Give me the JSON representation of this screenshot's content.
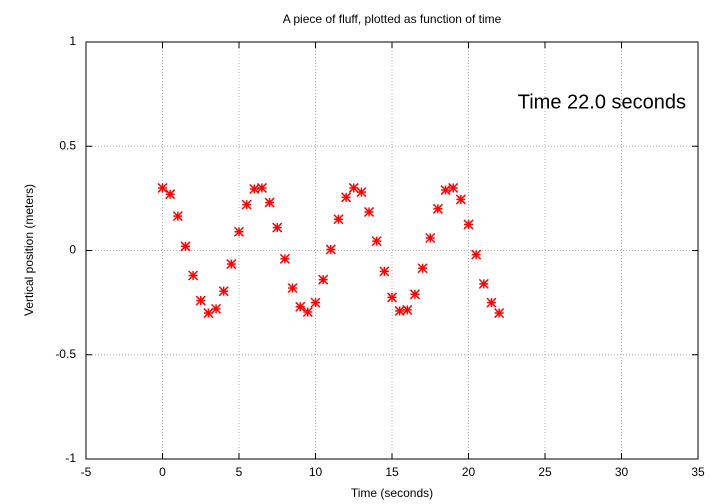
{
  "chart_data": {
    "type": "scatter",
    "title": "A piece of fluff, plotted as function of time",
    "x_label": "Time (seconds)",
    "y_label": "Vertical position (meters)",
    "annotation": "Time 22.0 seconds",
    "x": [
      0,
      0.5,
      1,
      1.5,
      2,
      2.5,
      3,
      3.5,
      4,
      4.5,
      5,
      5.5,
      6,
      6.5,
      7,
      7.5,
      8,
      8.5,
      9,
      9.5,
      10,
      10.5,
      11,
      11.5,
      12,
      12.5,
      13,
      13.5,
      14,
      14.5,
      15,
      15.5,
      16,
      16.5,
      17,
      17.5,
      18,
      18.5,
      19,
      19.5,
      20,
      20.5,
      21,
      21.5,
      22
    ],
    "values": [
      0.3,
      0.27,
      0.165,
      0.02,
      -0.12,
      -0.24,
      -0.3,
      -0.28,
      -0.195,
      -0.065,
      0.09,
      0.22,
      0.295,
      0.3,
      0.23,
      0.11,
      -0.04,
      -0.18,
      -0.27,
      -0.295,
      -0.25,
      -0.14,
      0.005,
      0.15,
      0.255,
      0.3,
      0.28,
      0.185,
      0.045,
      -0.1,
      -0.225,
      -0.29,
      -0.285,
      -0.21,
      -0.085,
      0.06,
      0.2,
      0.29,
      0.3,
      0.245,
      0.125,
      -0.02,
      -0.16,
      -0.25,
      -0.3
    ],
    "color": "#ff0000",
    "marker": "asterisk",
    "xlim": [
      -5,
      35
    ],
    "xticks": [
      -5,
      0,
      5,
      10,
      15,
      20,
      25,
      30,
      35
    ],
    "ylim": [
      -1,
      1
    ],
    "yticks": [
      -1,
      -0.5,
      0,
      0.5,
      1
    ],
    "grid": true
  }
}
